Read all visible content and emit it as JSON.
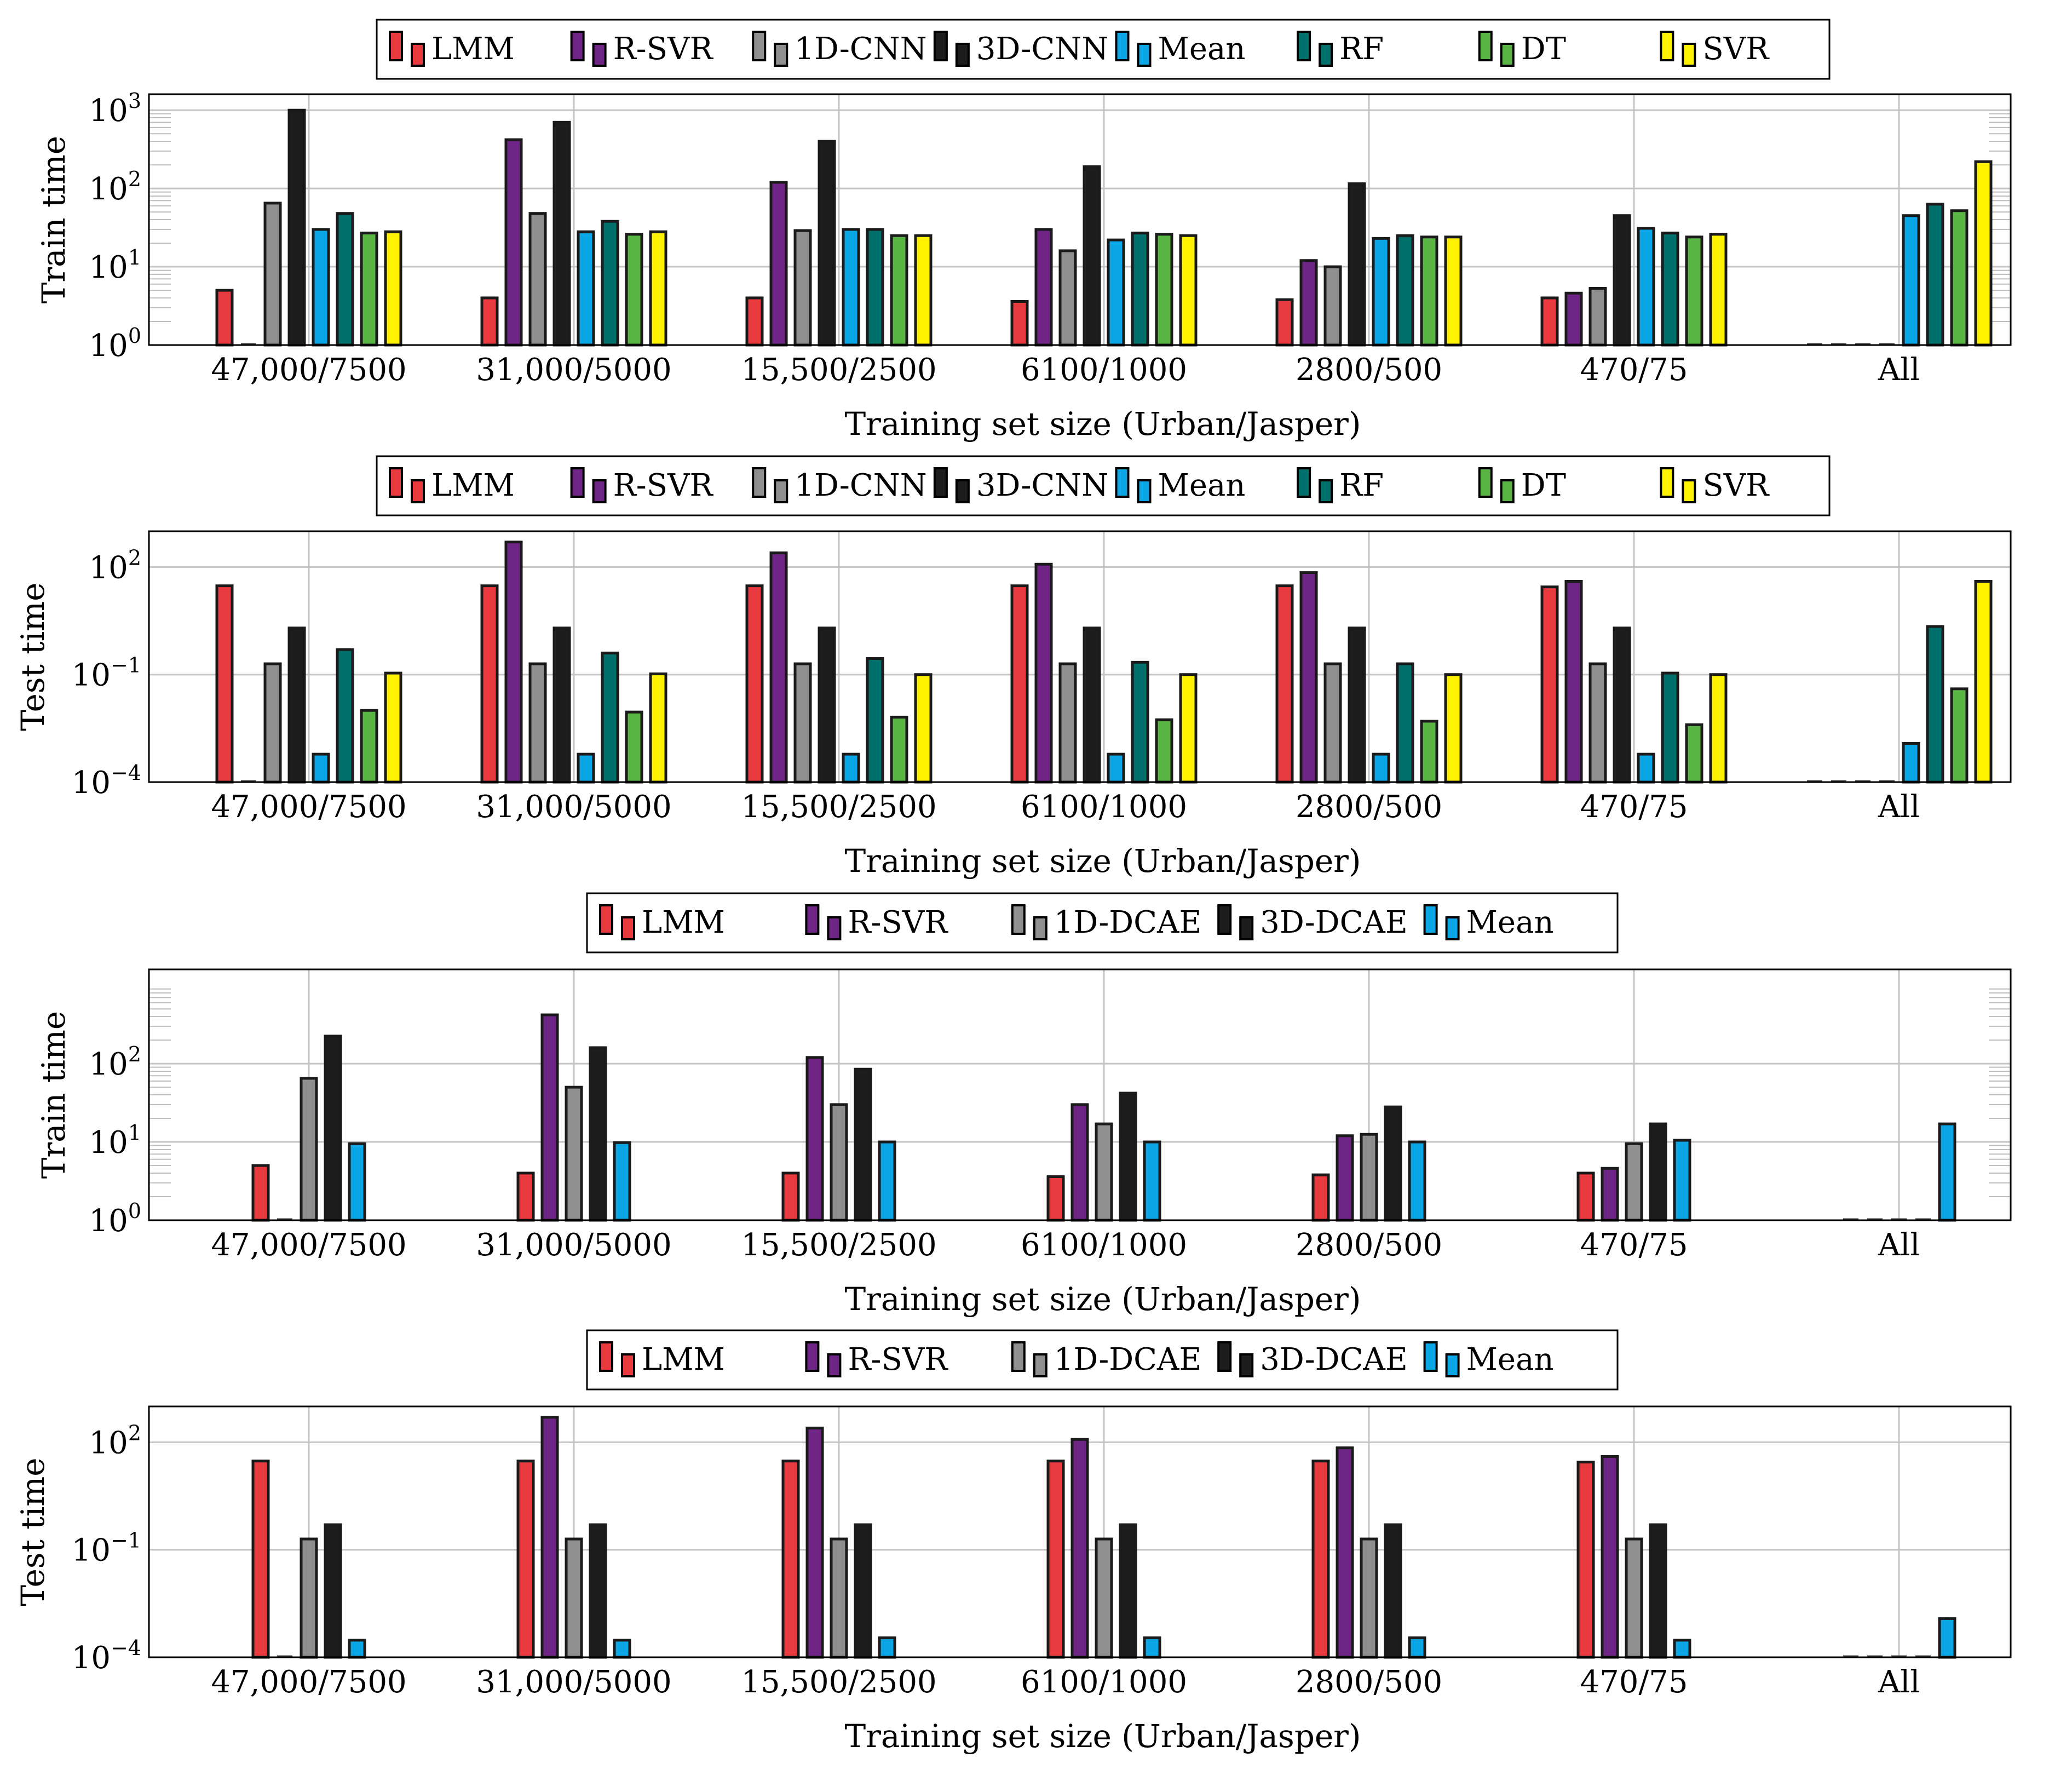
{
  "chart_data": [
    {
      "type": "bar",
      "scale": "log",
      "ylabel": "Train time",
      "xlabel": "Training set size (Urban/Jasper)",
      "categories": [
        "47,000/7500",
        "31,000/5000",
        "15,500/2500",
        "6100/1000",
        "2800/500",
        "470/75",
        "All"
      ],
      "ylim": [
        1,
        1600
      ],
      "yticks": [
        {
          "value": 1,
          "base": "10",
          "exp": "0"
        },
        {
          "value": 10,
          "base": "10",
          "exp": "1"
        },
        {
          "value": 100,
          "base": "10",
          "exp": "2"
        },
        {
          "value": 1000,
          "base": "10",
          "exp": "3"
        }
      ],
      "series": [
        {
          "name": "LMM",
          "color": "#e8393f",
          "values": [
            5,
            4,
            4,
            3.6,
            3.8,
            4,
            null
          ]
        },
        {
          "name": "R-SVR",
          "color": "#6f2585",
          "values": [
            null,
            420,
            120,
            30,
            12,
            4.6,
            null
          ]
        },
        {
          "name": "1D-CNN",
          "color": "#8f8f8f",
          "values": [
            65,
            48,
            29,
            16,
            10,
            5.3,
            null
          ]
        },
        {
          "name": "3D-CNN",
          "color": "#1d1d1d",
          "values": [
            1000,
            700,
            400,
            190,
            115,
            45,
            null
          ]
        },
        {
          "name": "Mean",
          "color": "#0aa6e6",
          "values": [
            30,
            28,
            30,
            22,
            23,
            31,
            45
          ]
        },
        {
          "name": "RF",
          "color": "#00706c",
          "values": [
            48,
            38,
            30,
            27,
            25,
            27,
            63
          ]
        },
        {
          "name": "DT",
          "color": "#5ab644",
          "values": [
            27,
            26,
            25,
            26,
            24,
            24,
            52
          ]
        },
        {
          "name": "SVR",
          "color": "#fff200",
          "values": [
            28,
            28,
            25,
            25,
            24,
            26,
            220
          ]
        }
      ]
    },
    {
      "type": "bar",
      "scale": "log",
      "ylabel": "Test time",
      "xlabel": "Training set size (Urban/Jasper)",
      "categories": [
        "47,000/7500",
        "31,000/5000",
        "15,500/2500",
        "6100/1000",
        "2800/500",
        "470/75",
        "All"
      ],
      "ylim": [
        0.0001,
        1000
      ],
      "yticks": [
        {
          "value": 0.0001,
          "base": "10",
          "exp": "−4"
        },
        {
          "value": 0.1,
          "base": "10",
          "exp": "−1"
        },
        {
          "value": 100,
          "base": "10",
          "exp": "2"
        }
      ],
      "series": [
        {
          "name": "LMM",
          "color": "#e8393f",
          "values": [
            30,
            30,
            30,
            30,
            30,
            28,
            null
          ]
        },
        {
          "name": "R-SVR",
          "color": "#6f2585",
          "values": [
            null,
            500,
            250,
            120,
            70,
            40,
            null
          ]
        },
        {
          "name": "1D-CNN",
          "color": "#8f8f8f",
          "values": [
            0.2,
            0.2,
            0.2,
            0.2,
            0.2,
            0.2,
            null
          ]
        },
        {
          "name": "3D-CNN",
          "color": "#1d1d1d",
          "values": [
            2,
            2,
            2,
            2,
            2,
            2,
            null
          ]
        },
        {
          "name": "Mean",
          "color": "#0aa6e6",
          "values": [
            0.0006,
            0.0006,
            0.0006,
            0.0006,
            0.0006,
            0.0006,
            0.0012
          ]
        },
        {
          "name": "RF",
          "color": "#00706c",
          "values": [
            0.5,
            0.4,
            0.28,
            0.22,
            0.2,
            0.11,
            2.2
          ]
        },
        {
          "name": "DT",
          "color": "#5ab644",
          "values": [
            0.01,
            0.009,
            0.0065,
            0.0055,
            0.005,
            0.004,
            0.04
          ]
        },
        {
          "name": "SVR",
          "color": "#fff200",
          "values": [
            0.11,
            0.105,
            0.1,
            0.1,
            0.1,
            0.1,
            40
          ]
        }
      ]
    },
    {
      "type": "bar",
      "scale": "log",
      "ylabel": "Train time",
      "xlabel": "Training set size (Urban/Jasper)",
      "categories": [
        "47,000/7500",
        "31,000/5000",
        "15,500/2500",
        "6100/1000",
        "2800/500",
        "470/75",
        "All"
      ],
      "ylim": [
        1,
        1600
      ],
      "yticks": [
        {
          "value": 1,
          "base": "10",
          "exp": "0"
        },
        {
          "value": 10,
          "base": "10",
          "exp": "1"
        },
        {
          "value": 100,
          "base": "10",
          "exp": "2"
        }
      ],
      "series": [
        {
          "name": "LMM",
          "color": "#e8393f",
          "values": [
            5,
            4,
            4,
            3.6,
            3.8,
            4,
            null
          ]
        },
        {
          "name": "R-SVR",
          "color": "#6f2585",
          "values": [
            null,
            420,
            120,
            30,
            12,
            4.6,
            null
          ]
        },
        {
          "name": "1D-DCAE",
          "color": "#8f8f8f",
          "values": [
            65,
            50,
            30,
            17,
            12.5,
            9.5,
            null
          ]
        },
        {
          "name": "3D-DCAE",
          "color": "#1d1d1d",
          "values": [
            225,
            160,
            85,
            42,
            28,
            17,
            null
          ]
        },
        {
          "name": "Mean",
          "color": "#0aa6e6",
          "values": [
            9.5,
            9.8,
            10,
            10,
            10,
            10.5,
            17
          ]
        }
      ]
    },
    {
      "type": "bar",
      "scale": "log",
      "ylabel": "Test time",
      "xlabel": "Training set size (Urban/Jasper)",
      "categories": [
        "47,000/7500",
        "31,000/5000",
        "15,500/2500",
        "6100/1000",
        "2800/500",
        "470/75",
        "All"
      ],
      "ylim": [
        0.0001,
        1000
      ],
      "yticks": [
        {
          "value": 0.0001,
          "base": "10",
          "exp": "−4"
        },
        {
          "value": 0.1,
          "base": "10",
          "exp": "−1"
        },
        {
          "value": 100,
          "base": "10",
          "exp": "2"
        }
      ],
      "series": [
        {
          "name": "LMM",
          "color": "#e8393f",
          "values": [
            30,
            30,
            30,
            30,
            30,
            28,
            null
          ]
        },
        {
          "name": "R-SVR",
          "color": "#6f2585",
          "values": [
            null,
            500,
            250,
            120,
            70,
            40,
            null
          ]
        },
        {
          "name": "1D-DCAE",
          "color": "#8f8f8f",
          "values": [
            0.2,
            0.2,
            0.2,
            0.2,
            0.2,
            0.2,
            null
          ]
        },
        {
          "name": "3D-DCAE",
          "color": "#1d1d1d",
          "values": [
            0.5,
            0.5,
            0.5,
            0.5,
            0.5,
            0.5,
            null
          ]
        },
        {
          "name": "Mean",
          "color": "#0aa6e6",
          "values": [
            0.0003,
            0.0003,
            0.00035,
            0.00035,
            0.00035,
            0.0003,
            0.0012
          ]
        }
      ]
    }
  ]
}
